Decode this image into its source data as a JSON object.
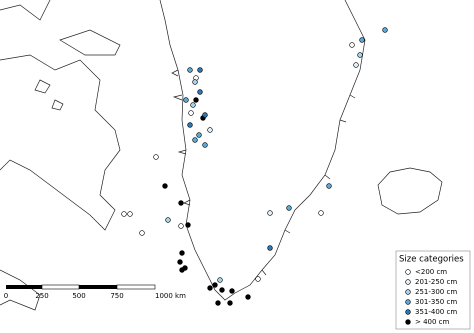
{
  "legend": {
    "title": "Size categories",
    "items": [
      {
        "label": "<200 cm",
        "color": "#ffffff"
      },
      {
        "label": "201-250 cm",
        "color": "#e3f0f8"
      },
      {
        "label": "251-300 cm",
        "color": "#a9d1ec"
      },
      {
        "label": "301-350 cm",
        "color": "#5fa6d6"
      },
      {
        "label": "351-400 cm",
        "color": "#2f76b0"
      },
      {
        "label": "> 400 cm",
        "color": "#000000"
      }
    ]
  },
  "scale_bar": {
    "labels": [
      "0",
      "250",
      "500",
      "750",
      "1000 km"
    ]
  }
}
